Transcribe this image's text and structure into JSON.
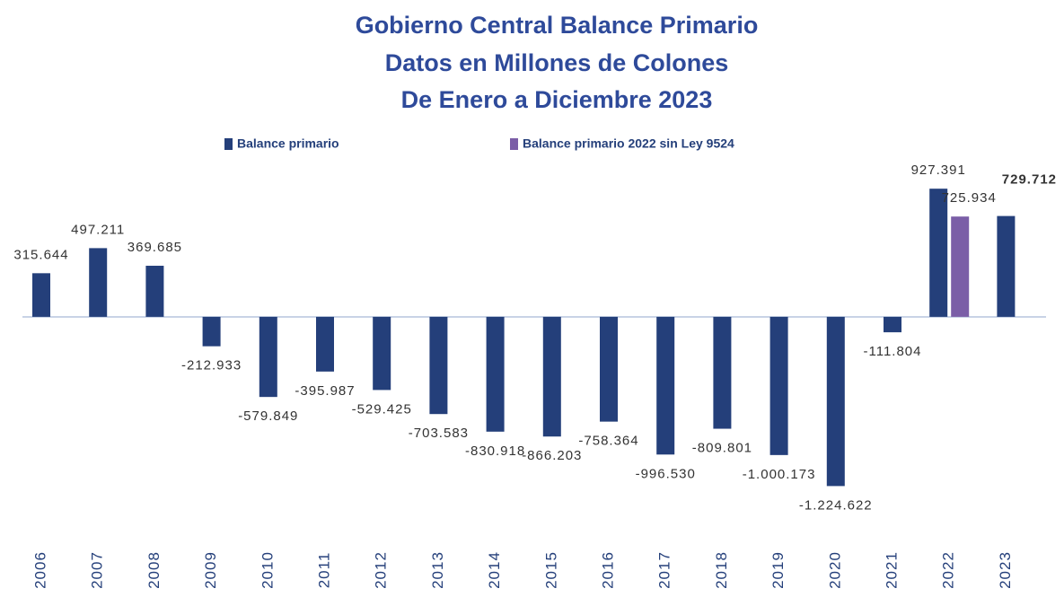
{
  "chart_data": {
    "type": "bar",
    "title": [
      "Gobierno Central  Balance Primario",
      "Datos en Millones de Colones",
      "De Enero a Diciembre 2023"
    ],
    "categories": [
      "2006",
      "2007",
      "2008",
      "2009",
      "2010",
      "2011",
      "2012",
      "2013",
      "2014",
      "2015",
      "2016",
      "2017",
      "2018",
      "2019",
      "2020",
      "2021",
      "2022",
      "2023"
    ],
    "series": [
      {
        "name": "Balance primario",
        "color": "#243f7a",
        "values": [
          315644,
          497211,
          369685,
          -212933,
          -579849,
          -395987,
          -529425,
          -703583,
          -830918,
          -866203,
          -758364,
          -996530,
          -809801,
          -1000173,
          -1224622,
          -111804,
          927391,
          729712
        ],
        "value_labels": [
          "315.644",
          "497.211",
          "369.685",
          "-212.933",
          "-579.849",
          "-395.987",
          "-529.425",
          "-703.583",
          "-830.918",
          "-866.203",
          "-758.364",
          "-996.530",
          "-809.801",
          "-1.000.173",
          "-1.224.622",
          "-111.804",
          "927.391",
          "729.712"
        ]
      },
      {
        "name": "Balance primario 2022 sin Ley 9524",
        "color": "#7b5ea7",
        "values": [
          null,
          null,
          null,
          null,
          null,
          null,
          null,
          null,
          null,
          null,
          null,
          null,
          null,
          null,
          null,
          null,
          725934,
          null
        ],
        "value_labels": [
          null,
          null,
          null,
          null,
          null,
          null,
          null,
          null,
          null,
          null,
          null,
          null,
          null,
          null,
          null,
          null,
          "725.934",
          null
        ]
      }
    ],
    "ylim": [
      -1300000,
      1000000
    ]
  }
}
